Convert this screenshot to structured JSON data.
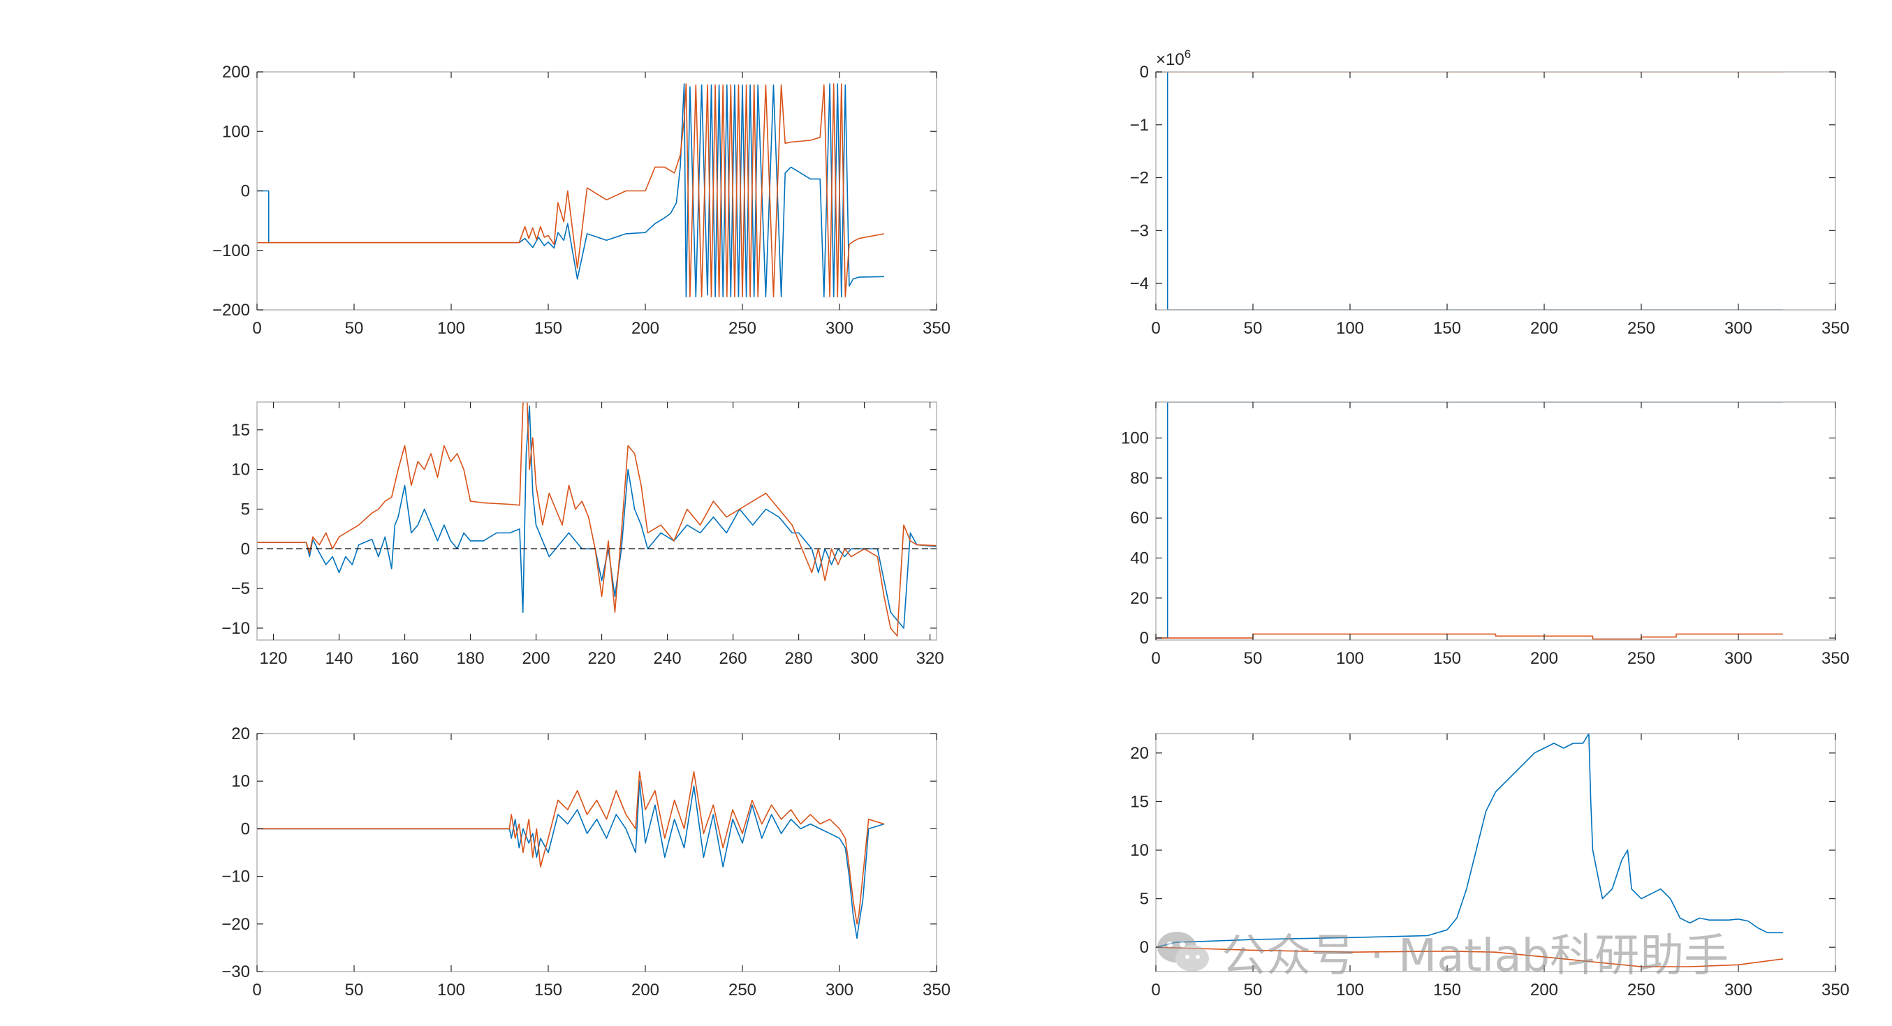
{
  "colors": {
    "series1": "#0072BD",
    "series2": "#D95319",
    "dashed": "#000000",
    "axis": "#262626",
    "frame": "#b0b0b0"
  },
  "watermark": {
    "text": "公众号 · Matlab科研助手",
    "icon": "wechat-icon"
  },
  "chart_data": [
    {
      "type": "line",
      "position": "top-left",
      "xlim": [
        0,
        350
      ],
      "ylim": [
        -200,
        200
      ],
      "xticks": [
        0,
        50,
        100,
        150,
        200,
        250,
        300,
        350
      ],
      "yticks": [
        -200,
        -100,
        0,
        100,
        200
      ],
      "series": [
        {
          "color": "#0072BD",
          "x": [
            0,
            6,
            6,
            130,
            135,
            138,
            142,
            145,
            148,
            150,
            153,
            155,
            158,
            160,
            165,
            170,
            180,
            190,
            200,
            205,
            210,
            213,
            216,
            218,
            220,
            221,
            223,
            226,
            229,
            232,
            234,
            236,
            238,
            240,
            242,
            244,
            246,
            248,
            250,
            252,
            254,
            256,
            258,
            262,
            266,
            270,
            272,
            275,
            285,
            290,
            292,
            295,
            297,
            299,
            301,
            303,
            305,
            307,
            310,
            323
          ],
          "y": [
            0,
            0,
            -87,
            -87,
            -87,
            -80,
            -95,
            -78,
            -92,
            -86,
            -96,
            -70,
            -83,
            -55,
            -148,
            -72,
            -83,
            -72,
            -70,
            -55,
            -45,
            -38,
            -20,
            40,
            180,
            -178,
            175,
            -178,
            178,
            -175,
            178,
            -178,
            178,
            -178,
            178,
            -178,
            178,
            -178,
            178,
            -178,
            178,
            -178,
            178,
            -178,
            178,
            -178,
            30,
            40,
            20,
            20,
            -178,
            180,
            -178,
            180,
            -178,
            178,
            -160,
            -148,
            -145,
            -144
          ]
        },
        {
          "color": "#D95319",
          "x": [
            0,
            130,
            135,
            138,
            140,
            142,
            144,
            146,
            148,
            150,
            153,
            155,
            158,
            160,
            165,
            170,
            180,
            190,
            200,
            205,
            210,
            215,
            218,
            220,
            221,
            223,
            226,
            229,
            232,
            234,
            236,
            238,
            240,
            242,
            244,
            246,
            248,
            250,
            252,
            254,
            256,
            258,
            262,
            266,
            270,
            272,
            275,
            285,
            290,
            292,
            295,
            297,
            299,
            301,
            303,
            305,
            307,
            310,
            323
          ],
          "y": [
            -87,
            -87,
            -87,
            -60,
            -80,
            -62,
            -82,
            -60,
            -78,
            -75,
            -90,
            -20,
            -52,
            0,
            -130,
            5,
            -15,
            0,
            0,
            40,
            40,
            30,
            60,
            120,
            180,
            -178,
            178,
            -178,
            178,
            -178,
            178,
            -178,
            178,
            -178,
            178,
            -178,
            178,
            -178,
            178,
            -178,
            178,
            -178,
            178,
            -178,
            178,
            80,
            82,
            85,
            90,
            178,
            -178,
            180,
            -178,
            180,
            -178,
            -90,
            -85,
            -80,
            -72
          ]
        }
      ]
    },
    {
      "type": "line",
      "position": "top-right",
      "xlim": [
        0,
        350
      ],
      "ylim": [
        -4.5,
        0
      ],
      "xticks": [
        0,
        50,
        100,
        150,
        200,
        250,
        300,
        350
      ],
      "yticks": [
        -4,
        -3,
        -2,
        -1,
        0
      ],
      "yexponent": "×10^6",
      "series": [
        {
          "color": "#0072BD",
          "x": [
            0,
            6,
            6,
            323
          ],
          "y": [
            0,
            0,
            -4.5,
            -4.5
          ]
        },
        {
          "color": "#D95319",
          "x": [
            0,
            323
          ],
          "y": [
            0,
            0
          ]
        }
      ]
    },
    {
      "type": "line",
      "position": "middle-left",
      "xlim": [
        115,
        322
      ],
      "ylim": [
        -11.5,
        18.5
      ],
      "xticks": [
        120,
        140,
        160,
        180,
        200,
        220,
        240,
        260,
        280,
        300,
        320
      ],
      "yticks": [
        -10,
        -5,
        0,
        5,
        10,
        15
      ],
      "series": [
        {
          "color": "#0072BD",
          "x": [
            115,
            130,
            131,
            132,
            134,
            136,
            138,
            140,
            142,
            144,
            146,
            150,
            152,
            154,
            156,
            157,
            158,
            160,
            162,
            164,
            166,
            168,
            170,
            172,
            174,
            176,
            178,
            180,
            184,
            188,
            192,
            195,
            196,
            197,
            198,
            199,
            200,
            202,
            204,
            206,
            210,
            214,
            218,
            220,
            222,
            224,
            226,
            228,
            230,
            232,
            234,
            238,
            242,
            246,
            250,
            254,
            258,
            262,
            266,
            270,
            274,
            278,
            280,
            284,
            286,
            288,
            290,
            292,
            294,
            296,
            300,
            304,
            306,
            308,
            310,
            312,
            314,
            316,
            322
          ],
          "y": [
            0.8,
            0.8,
            -1,
            1.2,
            -0.5,
            -2,
            -1,
            -3,
            -1,
            -2,
            0.5,
            1.2,
            -1,
            1.5,
            -2.5,
            3,
            4,
            8,
            2,
            3,
            5,
            3,
            1,
            3,
            1,
            0,
            2,
            1,
            1,
            2,
            2,
            2.5,
            -8,
            12,
            18,
            7,
            3,
            1,
            -1,
            0,
            2,
            0,
            0,
            -4,
            0,
            -6,
            0,
            10,
            5,
            3,
            0,
            2,
            1,
            3,
            2,
            4,
            2,
            5,
            3,
            5,
            4,
            2,
            2,
            0,
            -3,
            0,
            -2,
            0,
            -1,
            0,
            0,
            0,
            -4,
            -8,
            -9,
            -10,
            2,
            0.5,
            0.3
          ]
        },
        {
          "color": "#D95319",
          "x": [
            115,
            130,
            131,
            132,
            134,
            136,
            138,
            140,
            142,
            144,
            146,
            150,
            152,
            154,
            156,
            158,
            160,
            162,
            164,
            166,
            168,
            170,
            172,
            174,
            176,
            178,
            180,
            184,
            188,
            192,
            195,
            196,
            197,
            198,
            199,
            200,
            202,
            204,
            206,
            208,
            210,
            212,
            214,
            216,
            218,
            220,
            222,
            224,
            226,
            228,
            230,
            232,
            234,
            238,
            242,
            246,
            250,
            254,
            258,
            262,
            266,
            270,
            274,
            278,
            280,
            284,
            286,
            288,
            290,
            292,
            294,
            296,
            300,
            304,
            306,
            308,
            310,
            312,
            314,
            316,
            322
          ],
          "y": [
            0.8,
            0.8,
            -0.5,
            1.5,
            0.5,
            2,
            0,
            1.5,
            2,
            2.5,
            3,
            4.5,
            5,
            6,
            6.5,
            10,
            13,
            8,
            11,
            10,
            12,
            9,
            13,
            11,
            12,
            10,
            6,
            5.8,
            5.7,
            5.6,
            5.5,
            18,
            22,
            10,
            14,
            8,
            3,
            7,
            5,
            3,
            8,
            5,
            6,
            4,
            0,
            -6,
            1,
            -8,
            2,
            13,
            12,
            8,
            2,
            3,
            1,
            5,
            3,
            6,
            4,
            5,
            6,
            7,
            5,
            3,
            1,
            -3,
            0,
            -4,
            0,
            -2,
            0,
            -1,
            0,
            -1,
            -6,
            -10,
            -11,
            3,
            1,
            0.5,
            0.4
          ]
        },
        {
          "color": "#000000",
          "style": "dashed",
          "x": [
            115,
            322
          ],
          "y": [
            0,
            0
          ]
        }
      ]
    },
    {
      "type": "line",
      "position": "middle-right",
      "xlim": [
        0,
        350
      ],
      "ylim": [
        -1,
        118
      ],
      "xticks": [
        0,
        50,
        100,
        150,
        200,
        250,
        300,
        350
      ],
      "yticks": [
        0,
        20,
        40,
        60,
        80,
        100
      ],
      "series": [
        {
          "color": "#0072BD",
          "x": [
            0,
            6,
            6,
            323
          ],
          "y": [
            0,
            0,
            118,
            118
          ]
        },
        {
          "color": "#D95319",
          "x": [
            0,
            50,
            50,
            175,
            175,
            225,
            225,
            250,
            250,
            268,
            268,
            323
          ],
          "y": [
            0,
            0,
            2,
            2,
            1,
            1,
            -0.5,
            -0.5,
            0.5,
            0.5,
            2,
            2
          ]
        }
      ]
    },
    {
      "type": "line",
      "position": "bottom-left",
      "xlim": [
        0,
        350
      ],
      "ylim": [
        -30,
        20
      ],
      "xticks": [
        0,
        50,
        100,
        150,
        200,
        250,
        300,
        350
      ],
      "yticks": [
        -30,
        -20,
        -10,
        0,
        10,
        20
      ],
      "series": [
        {
          "color": "#0072BD",
          "x": [
            0,
            130,
            131,
            133,
            135,
            137,
            140,
            142,
            144,
            146,
            150,
            155,
            160,
            165,
            170,
            175,
            180,
            185,
            190,
            195,
            197,
            200,
            205,
            210,
            215,
            220,
            225,
            230,
            235,
            240,
            245,
            250,
            255,
            260,
            265,
            270,
            275,
            280,
            285,
            290,
            295,
            300,
            303,
            305,
            307,
            309,
            310,
            312,
            315,
            323
          ],
          "y": [
            0,
            0,
            -2,
            2,
            -4,
            0,
            -3,
            -1,
            -6,
            -2,
            -5,
            3,
            1,
            4,
            -1,
            2,
            -2,
            3,
            0,
            -5,
            10,
            -3,
            5,
            -6,
            2,
            -4,
            9,
            -6,
            3,
            -8,
            2,
            -3,
            5,
            -2,
            3,
            -1,
            2,
            0,
            1,
            0,
            -1,
            -2,
            -4,
            -10,
            -18,
            -23,
            -20,
            -15,
            0,
            1
          ]
        },
        {
          "color": "#D95319",
          "x": [
            0,
            130,
            131,
            133,
            135,
            137,
            140,
            142,
            144,
            146,
            150,
            155,
            160,
            165,
            170,
            175,
            180,
            185,
            190,
            195,
            197,
            200,
            205,
            210,
            215,
            220,
            225,
            230,
            235,
            240,
            245,
            250,
            255,
            260,
            265,
            270,
            275,
            280,
            285,
            290,
            295,
            300,
            303,
            305,
            307,
            309,
            310,
            312,
            315,
            323
          ],
          "y": [
            0,
            0,
            3,
            -2,
            1,
            -5,
            2,
            -6,
            0,
            -8,
            -2,
            6,
            4,
            8,
            3,
            6,
            2,
            8,
            3,
            0,
            12,
            4,
            8,
            -2,
            6,
            0,
            12,
            -1,
            5,
            -4,
            4,
            -1,
            6,
            1,
            5,
            2,
            4,
            1,
            3,
            1,
            2,
            0,
            -2,
            -8,
            -15,
            -20,
            -18,
            -10,
            2,
            1
          ]
        }
      ]
    },
    {
      "type": "line",
      "position": "bottom-right",
      "xlim": [
        0,
        350
      ],
      "ylim": [
        -2.5,
        22
      ],
      "xticks": [
        0,
        50,
        100,
        150,
        200,
        250,
        300,
        350
      ],
      "yticks": [
        0,
        5,
        10,
        15,
        20
      ],
      "series": [
        {
          "color": "#0072BD",
          "x": [
            0,
            10,
            50,
            100,
            140,
            150,
            155,
            160,
            165,
            170,
            175,
            180,
            185,
            190,
            195,
            200,
            205,
            210,
            215,
            220,
            223,
            224,
            225,
            230,
            235,
            240,
            243,
            245,
            250,
            255,
            260,
            265,
            270,
            275,
            280,
            285,
            290,
            295,
            300,
            305,
            310,
            315,
            323
          ],
          "y": [
            0,
            0.5,
            0.8,
            1.0,
            1.2,
            1.8,
            3,
            6,
            10,
            14,
            16,
            17,
            18,
            19,
            20,
            20.5,
            21,
            20.5,
            21,
            21,
            22,
            15,
            10,
            5,
            6,
            9,
            10,
            6,
            5,
            5.5,
            6,
            5,
            3,
            2.5,
            3,
            2.8,
            2.8,
            2.8,
            2.9,
            2.7,
            2,
            1.5,
            1.5
          ]
        },
        {
          "color": "#D95319",
          "x": [
            0,
            50,
            100,
            150,
            175,
            200,
            225,
            250,
            275,
            300,
            323
          ],
          "y": [
            0,
            -0.3,
            -0.5,
            -0.4,
            -0.5,
            -1.0,
            -1.5,
            -2.0,
            -2.0,
            -1.8,
            -1.2
          ]
        }
      ]
    }
  ]
}
